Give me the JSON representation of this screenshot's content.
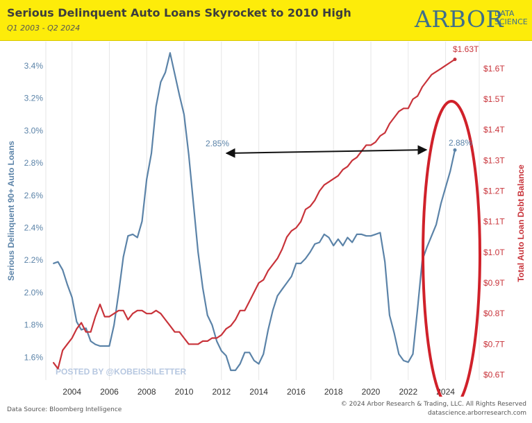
{
  "header": {
    "title": "Serious Delinquent Auto Loans Skyrocket to 2010 High",
    "subtitle": "Q1 2003 - Q2 2024",
    "logo_main": "ARBOR",
    "logo_sub_1": "DATA",
    "logo_sub_2": "SCIENCE"
  },
  "footer": {
    "source": "Data Source: Bloomberg Intelligence",
    "copyright": "© 2024 Arbor Research & Trading, LLC. All Rights Reserved",
    "url": "datascience.arborresearch.com"
  },
  "chart_data": {
    "type": "line",
    "watermark": "POSTED BY @KOBEISSILETTER",
    "xticks": [
      "2004",
      "2006",
      "2008",
      "2010",
      "2012",
      "2014",
      "2016",
      "2018",
      "2020",
      "2022",
      "2024"
    ],
    "x_range": [
      2002.6,
      2025.8
    ],
    "y_left": {
      "label": "Serious Delinquent 90+ Auto Loans",
      "range": [
        1.46,
        3.55
      ],
      "ticks": [
        "1.6%",
        "1.8%",
        "2.0%",
        "2.2%",
        "2.4%",
        "2.6%",
        "2.8%",
        "3.0%",
        "3.2%",
        "3.4%"
      ],
      "tick_values": [
        1.6,
        1.8,
        2.0,
        2.2,
        2.4,
        2.6,
        2.8,
        3.0,
        3.2,
        3.4
      ],
      "color": "#5b83a8"
    },
    "y_right": {
      "label": "Total Auto Loan Debt Balance",
      "range": [
        0.583,
        1.688
      ],
      "ticks": [
        "$0.6T",
        "$0.7T",
        "$0.8T",
        "$0.9T",
        "$1.0T",
        "$1.1T",
        "$1.2T",
        "$1.3T",
        "$1.4T",
        "$1.5T",
        "$1.6T"
      ],
      "tick_values": [
        0.6,
        0.7,
        0.8,
        0.9,
        1.0,
        1.1,
        1.2,
        1.3,
        1.4,
        1.5,
        1.6
      ],
      "color": "#c8333a"
    },
    "series": [
      {
        "name": "Serious Delinquent 90+ Auto Loans",
        "axis": "left",
        "color": "#5b83a8",
        "x": [
          2003.0,
          2003.25,
          2003.5,
          2003.75,
          2004.0,
          2004.25,
          2004.5,
          2004.75,
          2005.0,
          2005.25,
          2005.5,
          2005.75,
          2006.0,
          2006.25,
          2006.5,
          2006.75,
          2007.0,
          2007.25,
          2007.5,
          2007.75,
          2008.0,
          2008.25,
          2008.5,
          2008.75,
          2009.0,
          2009.25,
          2009.5,
          2009.75,
          2010.0,
          2010.25,
          2010.5,
          2010.75,
          2011.0,
          2011.25,
          2011.5,
          2011.75,
          2012.0,
          2012.25,
          2012.5,
          2012.75,
          2013.0,
          2013.25,
          2013.5,
          2013.75,
          2014.0,
          2014.25,
          2014.5,
          2014.75,
          2015.0,
          2015.25,
          2015.5,
          2015.75,
          2016.0,
          2016.25,
          2016.5,
          2016.75,
          2017.0,
          2017.25,
          2017.5,
          2017.75,
          2018.0,
          2018.25,
          2018.5,
          2018.75,
          2019.0,
          2019.25,
          2019.5,
          2019.75,
          2020.0,
          2020.25,
          2020.5,
          2020.75,
          2021.0,
          2021.25,
          2021.5,
          2021.75,
          2022.0,
          2022.25,
          2022.5,
          2022.75,
          2023.0,
          2023.25,
          2023.5,
          2023.75,
          2024.0,
          2024.25,
          2024.5
        ],
        "values": [
          2.18,
          2.19,
          2.14,
          2.05,
          1.97,
          1.82,
          1.77,
          1.78,
          1.7,
          1.68,
          1.67,
          1.67,
          1.67,
          1.8,
          2.0,
          2.22,
          2.35,
          2.36,
          2.34,
          2.44,
          2.7,
          2.86,
          3.15,
          3.3,
          3.36,
          3.48,
          3.35,
          3.22,
          3.1,
          2.85,
          2.55,
          2.25,
          2.03,
          1.86,
          1.8,
          1.7,
          1.64,
          1.61,
          1.52,
          1.52,
          1.56,
          1.63,
          1.63,
          1.58,
          1.56,
          1.62,
          1.77,
          1.89,
          1.98,
          2.02,
          2.06,
          2.1,
          2.18,
          2.18,
          2.21,
          2.25,
          2.3,
          2.31,
          2.36,
          2.34,
          2.29,
          2.33,
          2.29,
          2.34,
          2.31,
          2.36,
          2.36,
          2.35,
          2.35,
          2.36,
          2.37,
          2.19,
          1.86,
          1.75,
          1.62,
          1.58,
          1.57,
          1.62,
          1.9,
          2.2,
          2.28,
          2.35,
          2.42,
          2.55,
          2.65,
          2.75,
          2.88
        ]
      },
      {
        "name": "Total Auto Loan Debt Balance",
        "axis": "right",
        "color": "#c8333a",
        "x": [
          2003.0,
          2003.25,
          2003.5,
          2003.75,
          2004.0,
          2004.25,
          2004.5,
          2004.75,
          2005.0,
          2005.25,
          2005.5,
          2005.75,
          2006.0,
          2006.25,
          2006.5,
          2006.75,
          2007.0,
          2007.25,
          2007.5,
          2007.75,
          2008.0,
          2008.25,
          2008.5,
          2008.75,
          2009.0,
          2009.25,
          2009.5,
          2009.75,
          2010.0,
          2010.25,
          2010.5,
          2010.75,
          2011.0,
          2011.25,
          2011.5,
          2011.75,
          2012.0,
          2012.25,
          2012.5,
          2012.75,
          2013.0,
          2013.25,
          2013.5,
          2013.75,
          2014.0,
          2014.25,
          2014.5,
          2014.75,
          2015.0,
          2015.25,
          2015.5,
          2015.75,
          2016.0,
          2016.25,
          2016.5,
          2016.75,
          2017.0,
          2017.25,
          2017.5,
          2017.75,
          2018.0,
          2018.25,
          2018.5,
          2018.75,
          2019.0,
          2019.25,
          2019.5,
          2019.75,
          2020.0,
          2020.25,
          2020.5,
          2020.75,
          2021.0,
          2021.25,
          2021.5,
          2021.75,
          2022.0,
          2022.25,
          2022.5,
          2022.75,
          2023.0,
          2023.25,
          2023.5,
          2023.75,
          2024.0,
          2024.25,
          2024.5
        ],
        "values": [
          0.64,
          0.62,
          0.68,
          0.7,
          0.72,
          0.75,
          0.77,
          0.74,
          0.74,
          0.79,
          0.83,
          0.79,
          0.79,
          0.8,
          0.81,
          0.81,
          0.78,
          0.8,
          0.81,
          0.81,
          0.8,
          0.8,
          0.81,
          0.8,
          0.78,
          0.76,
          0.74,
          0.74,
          0.72,
          0.7,
          0.7,
          0.7,
          0.71,
          0.71,
          0.72,
          0.72,
          0.73,
          0.75,
          0.76,
          0.78,
          0.81,
          0.81,
          0.84,
          0.87,
          0.9,
          0.91,
          0.94,
          0.96,
          0.98,
          1.01,
          1.05,
          1.07,
          1.08,
          1.1,
          1.14,
          1.15,
          1.17,
          1.2,
          1.22,
          1.23,
          1.24,
          1.25,
          1.27,
          1.28,
          1.3,
          1.31,
          1.33,
          1.35,
          1.35,
          1.36,
          1.38,
          1.39,
          1.42,
          1.44,
          1.46,
          1.47,
          1.47,
          1.5,
          1.51,
          1.54,
          1.56,
          1.58,
          1.59,
          1.6,
          1.61,
          1.62,
          1.63
        ]
      }
    ],
    "annotations": {
      "label_left_value": "2.85%",
      "label_right_value": "2.88%",
      "label_end_balance": "$1.63T"
    }
  }
}
